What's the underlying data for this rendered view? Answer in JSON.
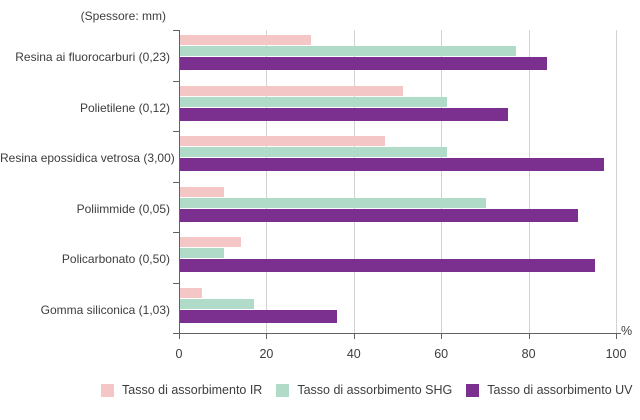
{
  "chart_data": {
    "type": "bar",
    "orientation": "horizontal",
    "title": "",
    "axis_annotation": "(Spessore: mm)",
    "x_unit_label": "%",
    "xlim": [
      0,
      100
    ],
    "xticks": [
      0,
      20,
      40,
      60,
      80,
      100
    ],
    "grid": true,
    "legend_position": "bottom",
    "categories": [
      "Resina ai fluorocarburi (0,23)",
      "Polietilene (0,12)",
      "Resina epossidica vetrosa (3,00)",
      "Poliimmide (0,05)",
      "Policarbonato (0,50)",
      "Gomma siliconica (1,03)"
    ],
    "series": [
      {
        "name": "Tasso di assorbimento IR",
        "color": "#f4c6c6",
        "values": [
          30,
          51,
          47,
          10,
          14,
          5
        ]
      },
      {
        "name": "Tasso di assorbimento SHG",
        "color": "#b0dbc9",
        "values": [
          77,
          61,
          61,
          70,
          10,
          17
        ]
      },
      {
        "name": "Tasso di assorbimento UV",
        "color": "#7b2f8e",
        "values": [
          84,
          75,
          97,
          91,
          95,
          36
        ]
      }
    ],
    "colors": {
      "grid": "#d2d2d2",
      "axis": "#616161",
      "text": "#3d3d3d"
    }
  }
}
